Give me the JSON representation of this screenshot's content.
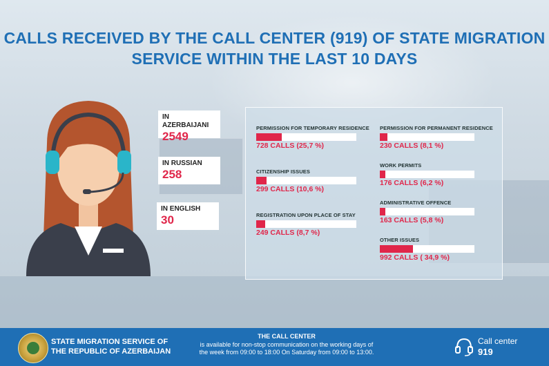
{
  "title": {
    "line1": "CALLS RECEIVED BY THE CALL CENTER (919) OF STATE MIGRATION",
    "line2": "SERVICE WITHIN THE LAST 10 DAYS"
  },
  "languages": [
    {
      "label": "IN AZERBAIJANI",
      "value": "2549"
    },
    {
      "label": "IN RUSSIAN",
      "value": "258"
    },
    {
      "label": "IN ENGLISH",
      "value": "30"
    }
  ],
  "chart_data": {
    "type": "bar",
    "categories": [
      "PERMISSION FOR TEMPORARY RESIDENCE",
      "CITIZENSHIP ISSUES",
      "REGISTRATION UPON PLACE OF STAY",
      "PERMISSION FOR PERMANENT RESIDENCE",
      "WORK PERMITS",
      "ADMINISTRATIVE OFFENCE",
      "OTHER ISSUES"
    ],
    "values": [
      728,
      299,
      249,
      230,
      176,
      163,
      992
    ],
    "percentages": [
      25.7,
      10.6,
      8.7,
      8.1,
      6.2,
      5.8,
      34.9
    ],
    "value_labels": [
      "728 CALLS (25,7 %)",
      " 299 CALLS (10,6 %)",
      "249 CALLS (8,7 %)",
      "230 CALLS (8,1 %)",
      "176 CALLS (6,2 %)",
      "163 CALLS (5,8 %)",
      "992 CALLS ( 34,9 %)"
    ],
    "ylim": [
      0,
      100
    ]
  },
  "footer": {
    "org_line1": "STATE MIGRATION SERVICE OF",
    "org_line2": "THE REPUBLIC OF AZERBAIJAN",
    "cc_title": "THE CALL CENTER",
    "cc_text_line1": "is available for non-stop communication on the working days of",
    "cc_text_line2": "the week from 09:00 to 18:00 On Saturday from 09:00 to 13:00.",
    "cc_label": "Call center",
    "cc_number": "919"
  },
  "colors": {
    "accent_blue": "#1f6fb5",
    "value_red": "#e0264a"
  }
}
